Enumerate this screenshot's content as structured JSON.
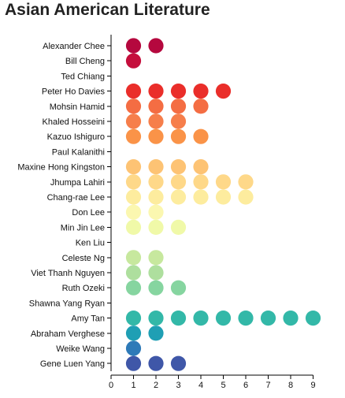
{
  "chart_data": {
    "type": "dot",
    "title": "Asian American Literature",
    "xlabel": "",
    "ylabel": "",
    "xlim": [
      0,
      9
    ],
    "x_ticks": [
      0,
      1,
      2,
      3,
      4,
      5,
      6,
      7,
      8,
      9
    ],
    "grid": false,
    "legend": "none",
    "categories": [
      "Alexander Chee",
      "Bill Cheng",
      "Ted Chiang",
      "Peter Ho Davies",
      "Mohsin Hamid",
      "Khaled Hosseini",
      "Kazuo Ishiguro",
      "Paul Kalanithi",
      "Maxine Hong Kingston",
      "Jhumpa Lahiri",
      "Chang-rae Lee",
      "Don Lee",
      "Min Jin Lee",
      "Ken Liu",
      "Celeste Ng",
      "Viet Thanh Nguyen",
      "Ruth Ozeki",
      "Shawna Yang Ryan",
      "Amy Tan",
      "Abraham Verghese",
      "Weike Wang",
      "Gene Luen Yang"
    ],
    "values": [
      2,
      1,
      0,
      5,
      4,
      3,
      4,
      0,
      4,
      6,
      6,
      2,
      3,
      0,
      2,
      2,
      3,
      0,
      9,
      2,
      1,
      3
    ],
    "colors": [
      "#b5083e",
      "#c50e3c",
      "#d7191c",
      "#ea2e2a",
      "#f46d43",
      "#f67e4b",
      "#fa9348",
      "#fcac5e",
      "#fdc374",
      "#fed889",
      "#fdec9e",
      "#fbf7b0",
      "#f0f9a8",
      "#e0f3a6",
      "#c7e89e",
      "#aedf9e",
      "#86d5a0",
      "#5cc7a5",
      "#33b8a8",
      "#1f9fb4",
      "#2e7ab8",
      "#3f57a8"
    ]
  }
}
